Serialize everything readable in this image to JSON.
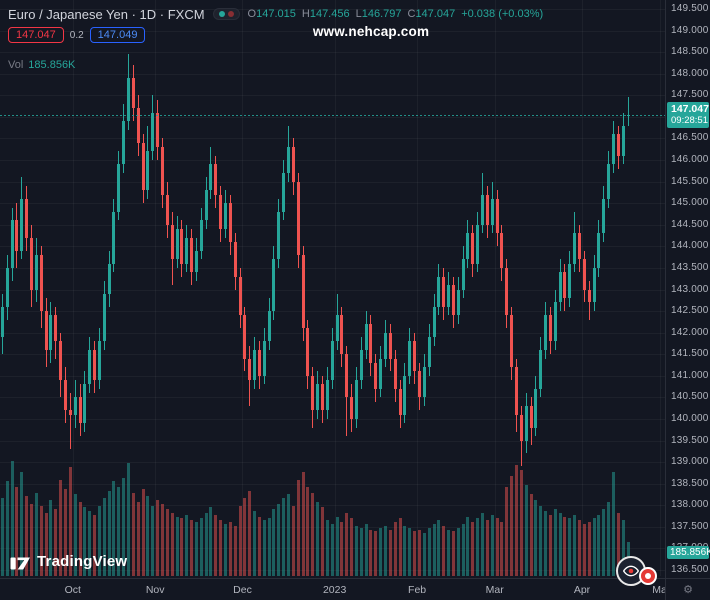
{
  "header": {
    "symbol_title": "Euro / Japanese Yen · 1D · FXCM",
    "ohlc": [
      {
        "label": "O",
        "value": "147.015"
      },
      {
        "label": "H",
        "value": "147.456"
      },
      {
        "label": "L",
        "value": "146.797"
      },
      {
        "label": "C",
        "value": "147.047"
      }
    ],
    "change": "+0.038 (+0.03%)",
    "sell_price": "147.047",
    "spread": "0.2",
    "buy_price": "147.049",
    "volume_label": "Vol",
    "volume_value": "185.856K"
  },
  "watermark": {
    "text": "www.nehcap.com"
  },
  "logo": {
    "text": "TradingView"
  },
  "price_axis": {
    "ticks": [
      "149.500",
      "149.000",
      "148.500",
      "148.000",
      "147.500",
      "147.000",
      "146.500",
      "146.000",
      "145.500",
      "145.000",
      "144.500",
      "144.000",
      "143.500",
      "143.000",
      "142.500",
      "142.000",
      "141.500",
      "141.000",
      "140.500",
      "140.000",
      "139.500",
      "139.000",
      "138.500",
      "138.000",
      "137.500",
      "137.000",
      "136.500"
    ],
    "last_price": "147.047",
    "last_time": "09:28:51",
    "volume_badge": "185.856K"
  },
  "time_axis": {
    "labels": [
      {
        "text": "Oct",
        "idx": 15
      },
      {
        "text": "Nov",
        "idx": 32
      },
      {
        "text": "Dec",
        "idx": 50
      },
      {
        "text": "2023",
        "idx": 69
      },
      {
        "text": "Feb",
        "idx": 86
      },
      {
        "text": "Mar",
        "idx": 102
      },
      {
        "text": "Apr",
        "idx": 120
      },
      {
        "text": "Ma",
        "idx": 136
      }
    ]
  },
  "chart_data": {
    "type": "candlestick",
    "title": "Euro / Japanese Yen",
    "timeframe": "1D",
    "exchange": "FXCM",
    "price_range": [
      136.5,
      149.5
    ],
    "grid": "faint",
    "colors": {
      "up": "#26a69a",
      "down": "#ef5350",
      "badge": "#26a69a"
    },
    "last": {
      "open": 147.015,
      "high": 147.456,
      "low": 146.797,
      "close": 147.047,
      "change": "+0.038",
      "change_pct": "+0.03%",
      "volume_k": 185.856
    },
    "volume_unit": "K",
    "candles": [
      [
        141.9,
        142.9,
        141.5,
        142.6,
        420
      ],
      [
        142.6,
        143.8,
        142.3,
        143.5,
        510
      ],
      [
        143.5,
        144.9,
        143.2,
        144.6,
        620
      ],
      [
        144.6,
        145.0,
        143.5,
        143.9,
        480
      ],
      [
        143.9,
        145.6,
        143.7,
        145.1,
        560
      ],
      [
        145.1,
        145.4,
        143.9,
        144.2,
        430
      ],
      [
        144.2,
        144.5,
        142.6,
        143.0,
        390
      ],
      [
        143.0,
        144.2,
        142.7,
        143.8,
        450
      ],
      [
        143.8,
        144.0,
        142.1,
        142.5,
        380
      ],
      [
        142.5,
        142.8,
        141.2,
        141.6,
        340
      ],
      [
        141.6,
        142.7,
        141.3,
        142.4,
        410
      ],
      [
        142.4,
        142.6,
        141.4,
        141.8,
        360
      ],
      [
        141.8,
        142.0,
        140.5,
        140.9,
        520
      ],
      [
        140.9,
        141.2,
        139.9,
        140.2,
        470
      ],
      [
        140.2,
        140.6,
        139.3,
        140.1,
        590
      ],
      [
        140.1,
        140.9,
        139.8,
        140.5,
        440
      ],
      [
        140.5,
        140.8,
        139.6,
        139.9,
        400
      ],
      [
        139.9,
        141.1,
        139.7,
        140.8,
        370
      ],
      [
        140.8,
        141.9,
        140.6,
        141.6,
        350
      ],
      [
        141.6,
        141.8,
        140.6,
        140.9,
        330
      ],
      [
        140.9,
        142.1,
        140.7,
        141.8,
        380
      ],
      [
        141.8,
        143.2,
        141.6,
        142.9,
        420
      ],
      [
        142.9,
        143.9,
        142.6,
        143.6,
        460
      ],
      [
        143.6,
        145.1,
        143.4,
        144.8,
        510
      ],
      [
        144.8,
        146.2,
        144.6,
        145.9,
        480
      ],
      [
        145.9,
        147.3,
        145.7,
        146.9,
        530
      ],
      [
        146.9,
        148.45,
        146.7,
        147.9,
        610
      ],
      [
        147.9,
        148.2,
        146.9,
        147.2,
        450
      ],
      [
        147.2,
        147.5,
        146.1,
        146.4,
        400
      ],
      [
        146.4,
        146.6,
        145.0,
        145.3,
        470
      ],
      [
        145.3,
        146.8,
        145.1,
        146.2,
        430
      ],
      [
        146.2,
        147.5,
        146.0,
        147.1,
        380
      ],
      [
        147.1,
        147.4,
        146.0,
        146.3,
        410
      ],
      [
        146.3,
        146.5,
        144.9,
        145.2,
        390
      ],
      [
        145.2,
        145.5,
        144.2,
        144.5,
        360
      ],
      [
        144.5,
        144.8,
        143.1,
        143.7,
        340
      ],
      [
        143.7,
        144.7,
        143.5,
        144.4,
        320
      ],
      [
        144.4,
        144.6,
        143.3,
        143.6,
        310
      ],
      [
        143.6,
        144.5,
        143.4,
        144.2,
        330
      ],
      [
        144.2,
        144.4,
        143.1,
        143.4,
        300
      ],
      [
        143.4,
        144.2,
        143.2,
        143.9,
        290
      ],
      [
        143.9,
        144.9,
        143.7,
        144.6,
        310
      ],
      [
        144.6,
        145.6,
        144.4,
        145.3,
        340
      ],
      [
        145.3,
        146.3,
        145.1,
        145.9,
        370
      ],
      [
        145.9,
        146.1,
        144.9,
        145.2,
        330
      ],
      [
        145.2,
        145.4,
        144.1,
        144.4,
        300
      ],
      [
        144.4,
        145.3,
        144.2,
        145.0,
        280
      ],
      [
        145.0,
        145.2,
        143.8,
        144.1,
        290
      ],
      [
        144.1,
        144.3,
        143.0,
        143.3,
        270
      ],
      [
        143.3,
        143.5,
        142.1,
        142.4,
        380
      ],
      [
        142.4,
        142.6,
        141.1,
        141.4,
        420
      ],
      [
        141.4,
        141.7,
        140.3,
        140.9,
        460
      ],
      [
        140.9,
        141.9,
        140.7,
        141.6,
        350
      ],
      [
        141.6,
        141.8,
        140.7,
        141.0,
        320
      ],
      [
        141.0,
        142.1,
        140.8,
        141.8,
        300
      ],
      [
        141.8,
        142.8,
        141.6,
        142.5,
        310
      ],
      [
        142.5,
        144.0,
        142.3,
        143.7,
        360
      ],
      [
        143.7,
        145.1,
        143.5,
        144.8,
        390
      ],
      [
        144.8,
        146.0,
        144.6,
        145.7,
        420
      ],
      [
        145.7,
        146.8,
        145.5,
        146.3,
        440
      ],
      [
        146.3,
        146.5,
        145.2,
        145.5,
        380
      ],
      [
        145.5,
        145.7,
        143.5,
        143.8,
        520
      ],
      [
        143.8,
        144.0,
        141.8,
        142.1,
        560
      ],
      [
        142.1,
        142.3,
        140.7,
        141.0,
        480
      ],
      [
        141.0,
        141.2,
        139.8,
        140.2,
        450
      ],
      [
        140.2,
        141.1,
        140.0,
        140.8,
        400
      ],
      [
        140.8,
        141.0,
        139.9,
        140.2,
        370
      ],
      [
        140.2,
        141.2,
        140.0,
        140.9,
        300
      ],
      [
        140.9,
        142.1,
        140.7,
        141.8,
        280
      ],
      [
        141.8,
        142.9,
        141.6,
        142.4,
        320
      ],
      [
        142.4,
        142.6,
        141.2,
        141.5,
        290
      ],
      [
        141.5,
        141.7,
        139.6,
        140.5,
        340
      ],
      [
        140.5,
        140.8,
        139.7,
        140.0,
        310
      ],
      [
        140.0,
        141.2,
        139.8,
        140.9,
        270
      ],
      [
        140.9,
        141.9,
        140.7,
        141.6,
        260
      ],
      [
        141.6,
        142.5,
        141.4,
        142.2,
        280
      ],
      [
        142.2,
        142.4,
        141.0,
        141.3,
        250
      ],
      [
        141.3,
        141.5,
        140.4,
        140.7,
        240
      ],
      [
        140.7,
        141.7,
        140.5,
        141.4,
        260
      ],
      [
        141.4,
        142.3,
        141.2,
        142.0,
        270
      ],
      [
        142.0,
        142.2,
        141.1,
        141.4,
        250
      ],
      [
        141.4,
        141.6,
        140.4,
        140.7,
        290
      ],
      [
        140.7,
        140.9,
        139.8,
        140.1,
        310
      ],
      [
        140.1,
        141.3,
        139.9,
        141.0,
        270
      ],
      [
        141.0,
        142.1,
        140.8,
        141.8,
        260
      ],
      [
        141.8,
        142.0,
        140.8,
        141.1,
        240
      ],
      [
        141.1,
        141.3,
        140.2,
        140.5,
        250
      ],
      [
        140.5,
        141.5,
        140.3,
        141.2,
        230
      ],
      [
        141.2,
        142.2,
        141.0,
        141.9,
        260
      ],
      [
        141.9,
        142.9,
        141.7,
        142.6,
        280
      ],
      [
        142.6,
        143.6,
        142.4,
        143.3,
        300
      ],
      [
        143.3,
        143.5,
        142.3,
        142.6,
        270
      ],
      [
        142.6,
        143.4,
        142.4,
        143.1,
        250
      ],
      [
        143.1,
        143.3,
        142.1,
        142.4,
        240
      ],
      [
        142.4,
        143.3,
        142.2,
        143.0,
        260
      ],
      [
        143.0,
        144.0,
        142.8,
        143.7,
        280
      ],
      [
        143.7,
        144.6,
        143.5,
        144.3,
        320
      ],
      [
        144.3,
        144.5,
        143.3,
        143.6,
        290
      ],
      [
        143.6,
        144.8,
        143.4,
        144.5,
        310
      ],
      [
        144.5,
        145.7,
        144.3,
        145.2,
        340
      ],
      [
        145.2,
        145.4,
        144.2,
        144.5,
        300
      ],
      [
        144.5,
        145.5,
        144.3,
        145.1,
        330
      ],
      [
        145.1,
        145.3,
        144.0,
        144.3,
        310
      ],
      [
        144.3,
        144.5,
        143.2,
        143.5,
        290
      ],
      [
        143.5,
        143.7,
        142.1,
        142.4,
        480
      ],
      [
        142.4,
        142.6,
        140.9,
        141.2,
        540
      ],
      [
        141.2,
        141.4,
        139.7,
        140.1,
        600
      ],
      [
        140.1,
        140.3,
        138.9,
        139.5,
        570
      ],
      [
        139.5,
        140.6,
        139.2,
        140.3,
        490
      ],
      [
        140.3,
        140.5,
        139.4,
        139.8,
        440
      ],
      [
        139.8,
        141.0,
        139.6,
        140.7,
        410
      ],
      [
        140.7,
        141.9,
        140.5,
        141.6,
        380
      ],
      [
        141.6,
        142.7,
        141.4,
        142.4,
        350
      ],
      [
        142.4,
        142.6,
        141.5,
        141.8,
        330
      ],
      [
        141.8,
        143.0,
        141.6,
        142.7,
        360
      ],
      [
        142.7,
        143.7,
        142.5,
        143.4,
        340
      ],
      [
        143.4,
        143.6,
        142.5,
        142.8,
        320
      ],
      [
        142.8,
        143.9,
        142.6,
        143.6,
        310
      ],
      [
        143.6,
        144.8,
        143.4,
        144.3,
        330
      ],
      [
        144.3,
        144.5,
        143.4,
        143.7,
        300
      ],
      [
        143.7,
        143.9,
        142.7,
        143.0,
        280
      ],
      [
        143.0,
        143.2,
        142.3,
        142.7,
        290
      ],
      [
        142.7,
        143.8,
        142.5,
        143.5,
        310
      ],
      [
        143.5,
        144.6,
        143.3,
        144.3,
        330
      ],
      [
        144.3,
        145.4,
        144.1,
        145.1,
        360
      ],
      [
        145.1,
        146.2,
        144.9,
        145.9,
        400
      ],
      [
        145.9,
        146.9,
        145.7,
        146.6,
        560
      ],
      [
        146.6,
        146.8,
        145.8,
        146.1,
        340
      ],
      [
        146.1,
        147.1,
        145.9,
        146.8,
        300
      ],
      [
        147.015,
        147.456,
        146.797,
        147.047,
        185.856
      ]
    ]
  }
}
